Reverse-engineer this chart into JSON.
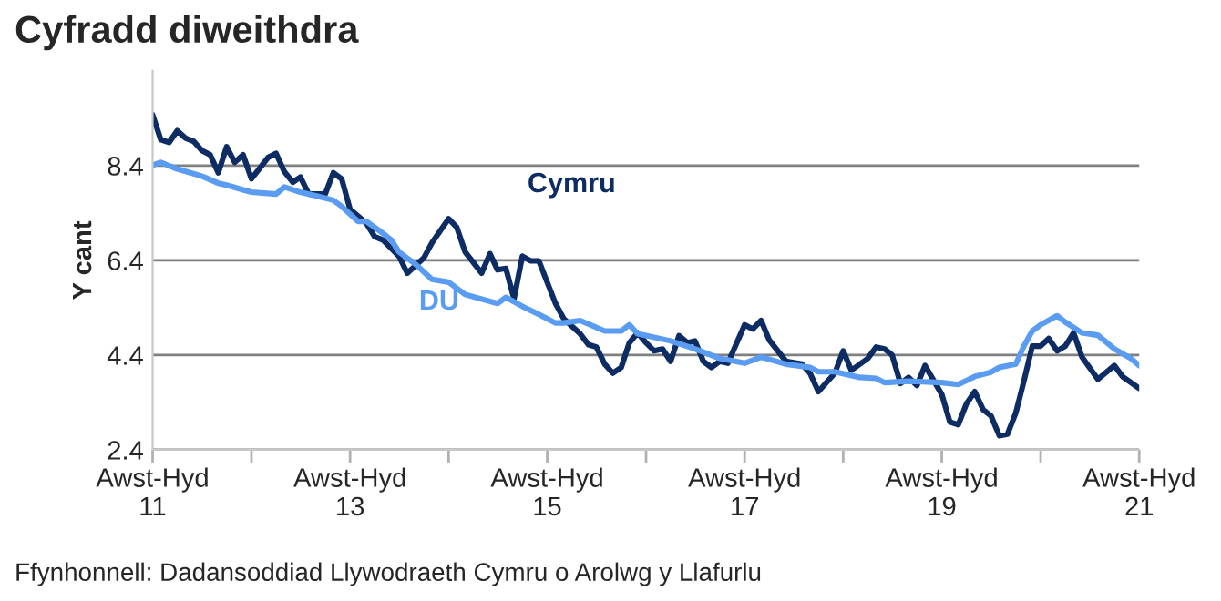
{
  "chart_data": {
    "type": "line",
    "title": "Cyfradd diweithdra",
    "ylabel": "Y cant",
    "annotations": [
      "Ffynhonnell: Dadansoddiad Llywodraeth Cymru o Arolwg y Llafurlu"
    ],
    "ylim": [
      2.4,
      10.4
    ],
    "yticks": [
      2.4,
      4.4,
      6.4,
      8.4
    ],
    "grid": "y",
    "legend": false,
    "marker": "none",
    "line_style": "solid",
    "xlim": [
      "2011-09",
      "2021-09"
    ],
    "xticks": [
      {
        "value": "2011-09",
        "label": "Awst-Hyd\n11"
      },
      {
        "value": "2012-09",
        "label": null
      },
      {
        "value": "2013-09",
        "label": "Awst-Hyd\n13"
      },
      {
        "value": "2014-09",
        "label": null
      },
      {
        "value": "2015-09",
        "label": "Awst-Hyd\n15"
      },
      {
        "value": "2016-09",
        "label": null
      },
      {
        "value": "2017-09",
        "label": "Awst-Hyd\n17"
      },
      {
        "value": "2018-09",
        "label": null
      },
      {
        "value": "2019-09",
        "label": "Awst-Hyd\n19"
      },
      {
        "value": "2020-09",
        "label": null
      },
      {
        "value": "2021-09",
        "label": "Awst-Hyd\n21"
      }
    ],
    "series": [
      {
        "name": "Cymru",
        "color": "#0c2c63",
        "x": [
          "2011-09",
          "2011-10",
          "2011-11",
          "2011-12",
          "2012-01",
          "2012-02",
          "2012-03",
          "2012-04",
          "2012-05",
          "2012-06",
          "2012-07",
          "2012-08",
          "2012-09",
          "2012-11",
          "2012-12",
          "2013-01",
          "2013-02",
          "2013-03",
          "2013-04",
          "2013-06",
          "2013-07",
          "2013-08",
          "2013-09",
          "2013-11",
          "2013-12",
          "2014-01",
          "2014-03",
          "2014-04",
          "2014-06",
          "2014-07",
          "2014-09",
          "2014-10",
          "2014-11",
          "2015-01",
          "2015-02",
          "2015-03",
          "2015-04",
          "2015-05",
          "2015-06",
          "2015-07",
          "2015-08",
          "2015-10",
          "2015-11",
          "2016-01",
          "2016-02",
          "2016-03",
          "2016-04",
          "2016-05",
          "2016-06",
          "2016-07",
          "2016-08",
          "2016-09",
          "2016-10",
          "2016-11",
          "2016-12",
          "2017-01",
          "2017-02",
          "2017-03",
          "2017-04",
          "2017-05",
          "2017-06",
          "2017-07",
          "2017-09",
          "2017-10",
          "2017-11",
          "2017-12",
          "2018-02",
          "2018-04",
          "2018-05",
          "2018-06",
          "2018-08",
          "2018-09",
          "2018-10",
          "2018-12",
          "2019-01",
          "2019-02",
          "2019-03",
          "2019-04",
          "2019-05",
          "2019-06",
          "2019-07",
          "2019-09",
          "2019-10",
          "2019-11",
          "2019-12",
          "2020-01",
          "2020-02",
          "2020-03",
          "2020-04",
          "2020-05",
          "2020-06",
          "2020-07",
          "2020-08",
          "2020-09",
          "2020-10",
          "2020-11",
          "2020-12",
          "2021-01",
          "2021-02",
          "2021-04",
          "2021-06",
          "2021-07",
          "2021-09"
        ],
        "values": [
          9.47,
          8.95,
          8.89,
          9.14,
          8.98,
          8.91,
          8.72,
          8.63,
          8.25,
          8.8,
          8.47,
          8.63,
          8.12,
          8.57,
          8.66,
          8.27,
          8.05,
          8.16,
          7.8,
          7.8,
          8.25,
          8.12,
          7.48,
          7.18,
          6.9,
          6.83,
          6.49,
          6.13,
          6.45,
          6.77,
          7.28,
          7.1,
          6.58,
          6.13,
          6.54,
          6.2,
          6.23,
          5.59,
          6.49,
          6.39,
          6.39,
          5.5,
          5.17,
          4.85,
          4.62,
          4.57,
          4.21,
          4.02,
          4.14,
          4.66,
          4.87,
          4.66,
          4.49,
          4.53,
          4.27,
          4.81,
          4.66,
          4.7,
          4.27,
          4.14,
          4.27,
          4.23,
          5.04,
          4.95,
          5.13,
          4.72,
          4.27,
          4.21,
          4.02,
          3.63,
          4.02,
          4.49,
          4.08,
          4.33,
          4.57,
          4.53,
          4.4,
          3.8,
          3.93,
          3.76,
          4.18,
          3.57,
          2.99,
          2.93,
          3.37,
          3.63,
          3.25,
          3.12,
          2.7,
          2.73,
          3.18,
          3.85,
          4.59,
          4.59,
          4.75,
          4.49,
          4.59,
          4.87,
          4.36,
          3.89,
          4.18,
          3.95,
          3.7
        ]
      },
      {
        "name": "DU",
        "color": "#5a9cf2",
        "x": [
          "2011-09",
          "2011-10",
          "2011-12",
          "2012-03",
          "2012-05",
          "2012-06",
          "2012-08",
          "2012-09",
          "2012-12",
          "2013-01",
          "2013-03",
          "2013-05",
          "2013-07",
          "2013-08",
          "2013-10",
          "2013-11",
          "2014-01",
          "2014-02",
          "2014-03",
          "2014-05",
          "2014-07",
          "2014-09",
          "2014-11",
          "2015-03",
          "2015-04",
          "2015-06",
          "2015-08",
          "2015-10",
          "2015-11",
          "2016-01",
          "2016-04",
          "2016-06",
          "2016-07",
          "2016-08",
          "2016-12",
          "2017-03",
          "2017-06",
          "2017-09",
          "2017-11",
          "2018-02",
          "2018-05",
          "2018-06",
          "2018-08",
          "2018-11",
          "2019-01",
          "2019-02",
          "2019-05",
          "2019-09",
          "2019-11",
          "2020-01",
          "2020-03",
          "2020-04",
          "2020-06",
          "2020-07",
          "2020-08",
          "2020-09",
          "2020-11",
          "2020-12",
          "2021-02",
          "2021-04",
          "2021-06",
          "2021-08",
          "2021-09"
        ],
        "values": [
          8.41,
          8.47,
          8.33,
          8.18,
          8.03,
          7.99,
          7.89,
          7.84,
          7.8,
          7.95,
          7.84,
          7.76,
          7.67,
          7.54,
          7.22,
          7.22,
          6.97,
          6.83,
          6.58,
          6.32,
          6.0,
          5.94,
          5.68,
          5.49,
          5.62,
          5.43,
          5.26,
          5.08,
          5.08,
          5.13,
          4.91,
          4.91,
          5.04,
          4.85,
          4.7,
          4.53,
          4.33,
          4.23,
          4.36,
          4.21,
          4.14,
          4.05,
          4.05,
          3.93,
          3.91,
          3.82,
          3.85,
          3.82,
          3.78,
          3.95,
          4.04,
          4.14,
          4.21,
          4.59,
          4.91,
          5.04,
          5.23,
          5.1,
          4.87,
          4.82,
          4.53,
          4.33,
          4.18
        ]
      }
    ]
  }
}
